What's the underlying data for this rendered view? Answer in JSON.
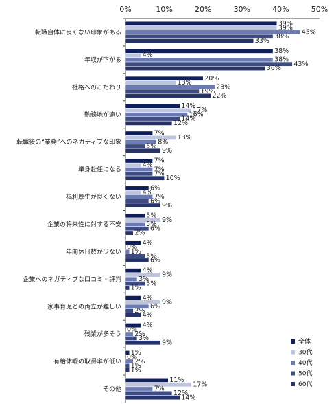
{
  "chart_data": {
    "type": "bar",
    "orientation": "horizontal",
    "x_ticks": [
      "0%",
      "10%",
      "20%",
      "30%",
      "40%",
      "50%"
    ],
    "xlim": [
      0,
      50
    ],
    "grid": "none",
    "legend_position": "bottom-right",
    "categories": [
      "転職自体に良くない印象がある",
      "年収が下がる",
      "社格へのこだわり",
      "勤務地が遠い",
      "転職後の“業務”へのネガティブな印象",
      "単身赴任になる",
      "福利厚生が良くない",
      "企業の将来性に対する不安",
      "年間休日数が少ない",
      "企業へのネガティブな口コミ・評判",
      "家事育児との両立が難しい",
      "残業が多そう",
      "有給休暇の取得率が低い",
      "その他"
    ],
    "series": [
      {
        "name": "全体",
        "color": "#0f1f5c",
        "values": [
          39,
          38,
          20,
          14,
          7,
          7,
          6,
          5,
          4,
          4,
          4,
          4,
          1,
          11
        ]
      },
      {
        "name": "30代",
        "color": "#bfc5dd",
        "values": [
          39,
          4,
          13,
          17,
          13,
          4,
          4,
          9,
          0,
          9,
          9,
          0,
          0,
          17
        ]
      },
      {
        "name": "40代",
        "color": "#6b7ab0",
        "values": [
          45,
          38,
          23,
          16,
          8,
          7,
          7,
          5,
          1,
          3,
          6,
          2,
          2,
          7
        ]
      },
      {
        "name": "50代",
        "color": "#3f4c82",
        "values": [
          38,
          43,
          19,
          14,
          5,
          7,
          6,
          6,
          5,
          5,
          2,
          3,
          1,
          12
        ]
      },
      {
        "name": "60代",
        "color": "#26336b",
        "values": [
          33,
          36,
          22,
          12,
          9,
          10,
          9,
          2,
          6,
          1,
          4,
          9,
          1,
          14
        ]
      }
    ],
    "value_suffix": "%"
  }
}
